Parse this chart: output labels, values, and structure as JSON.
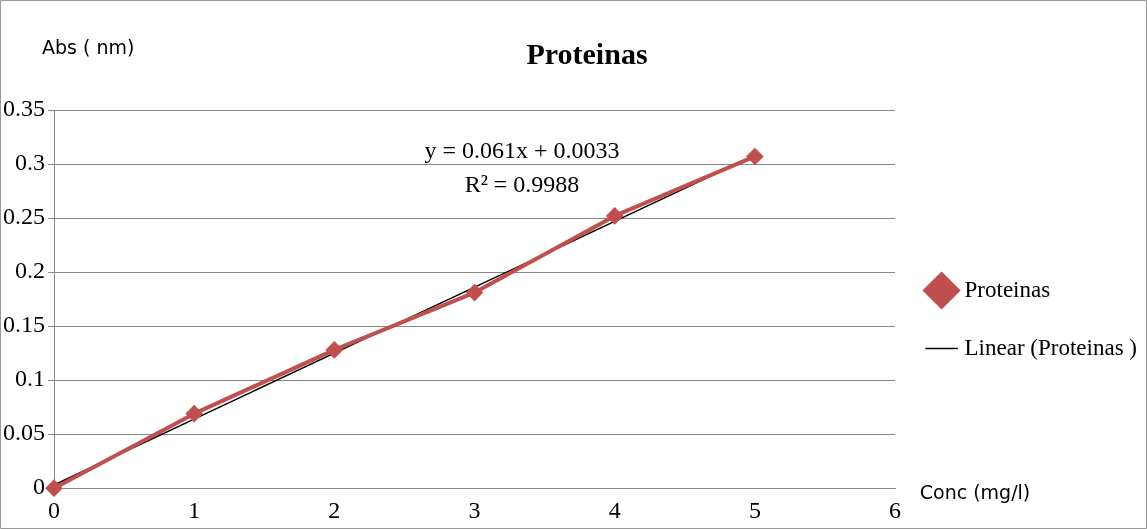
{
  "chart_data": {
    "type": "line",
    "title": "Proteinas",
    "xlabel": "Conc (mg/l)",
    "ylabel": "Abs ( nm)",
    "x": [
      0,
      1,
      2,
      3,
      4,
      5
    ],
    "series": [
      {
        "name": "Proteinas",
        "color": "#c0504d",
        "values": [
          0,
          0.069,
          0.128,
          0.181,
          0.252,
          0.307
        ]
      },
      {
        "name": "Linear (Proteinas )",
        "color": "#000000",
        "type": "line",
        "x": [
          0,
          5
        ],
        "values": [
          0.003,
          0.308
        ],
        "marker": "none"
      }
    ],
    "annotations": [
      "y = 0.061x + 0.0033",
      "R² = 0.9988"
    ],
    "xlim": [
      0,
      6
    ],
    "xticks": [
      0,
      1,
      2,
      3,
      4,
      5,
      6
    ],
    "ylim": [
      0,
      0.35
    ],
    "yticks": [
      0,
      0.05,
      0.1,
      0.15,
      0.2,
      0.25,
      0.3,
      0.35
    ],
    "grid": "y",
    "legend": "right",
    "marker": "diamond",
    "line_style": "solid"
  }
}
